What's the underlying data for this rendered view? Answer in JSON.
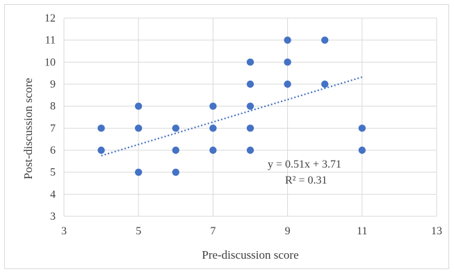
{
  "chart_data": {
    "type": "scatter",
    "title": "",
    "xlabel": "Pre-discussion score",
    "ylabel": "Post-discussion score",
    "xlim": [
      3,
      13
    ],
    "ylim": [
      3,
      12
    ],
    "xticks": [
      3,
      5,
      7,
      9,
      11,
      13
    ],
    "yticks": [
      3,
      4,
      5,
      6,
      7,
      8,
      9,
      10,
      11,
      12
    ],
    "grid": "on",
    "points": [
      [
        4,
        7
      ],
      [
        4,
        6
      ],
      [
        5,
        8
      ],
      [
        5,
        7
      ],
      [
        5,
        5
      ],
      [
        6,
        7
      ],
      [
        6,
        6
      ],
      [
        6,
        5
      ],
      [
        7,
        8
      ],
      [
        7,
        7
      ],
      [
        7,
        6
      ],
      [
        8,
        10
      ],
      [
        8,
        9
      ],
      [
        8,
        8
      ],
      [
        8,
        7
      ],
      [
        8,
        6
      ],
      [
        9,
        11
      ],
      [
        9,
        10
      ],
      [
        9,
        9
      ],
      [
        10,
        11
      ],
      [
        10,
        9
      ],
      [
        11,
        7
      ],
      [
        11,
        6
      ]
    ],
    "trendline": {
      "type": "linear",
      "slope": 0.51,
      "intercept": 3.71,
      "x_range": [
        4,
        11
      ],
      "equation_label": "y = 0.51x + 3.71",
      "r2_label": "R² = 0.31"
    }
  }
}
